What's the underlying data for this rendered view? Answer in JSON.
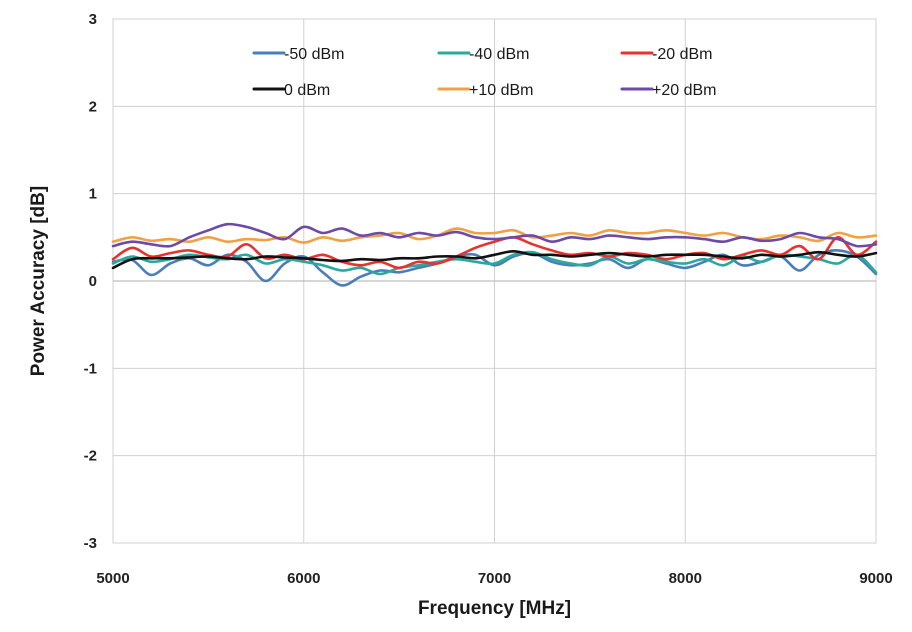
{
  "chart_data": {
    "type": "line",
    "title": "",
    "xlabel": "Frequency [MHz]",
    "ylabel": "Power Accuracy [dB]",
    "xlim": [
      5000,
      9000
    ],
    "ylim": [
      -3,
      3
    ],
    "xticks": [
      5000,
      6000,
      7000,
      8000,
      9000
    ],
    "yticks": [
      -3,
      -2,
      -1,
      0,
      1,
      2,
      3
    ],
    "grid": true,
    "legend_position": "top-center",
    "x": [
      5000,
      5100,
      5200,
      5300,
      5400,
      5500,
      5600,
      5700,
      5800,
      5900,
      6000,
      6100,
      6200,
      6300,
      6400,
      6500,
      6600,
      6700,
      6800,
      6900,
      7000,
      7100,
      7200,
      7300,
      7400,
      7500,
      7600,
      7700,
      7800,
      7900,
      8000,
      8100,
      8200,
      8300,
      8400,
      8500,
      8600,
      8700,
      8800,
      8900,
      9000
    ],
    "series": [
      {
        "name": "-50 dBm",
        "color": "#4a7ebb",
        "values": [
          0.22,
          0.24,
          0.07,
          0.2,
          0.26,
          0.18,
          0.3,
          0.22,
          0.0,
          0.2,
          0.28,
          0.1,
          -0.05,
          0.05,
          0.12,
          0.1,
          0.15,
          0.2,
          0.28,
          0.3,
          0.18,
          0.28,
          0.32,
          0.22,
          0.18,
          0.2,
          0.25,
          0.15,
          0.25,
          0.2,
          0.15,
          0.22,
          0.3,
          0.18,
          0.22,
          0.28,
          0.12,
          0.3,
          0.35,
          0.28,
          0.08
        ]
      },
      {
        "name": "-40 dBm",
        "color": "#2ba89e",
        "values": [
          0.2,
          0.28,
          0.22,
          0.25,
          0.3,
          0.27,
          0.25,
          0.3,
          0.2,
          0.25,
          0.22,
          0.18,
          0.12,
          0.15,
          0.08,
          0.15,
          0.18,
          0.22,
          0.25,
          0.22,
          0.2,
          0.3,
          0.33,
          0.25,
          0.2,
          0.18,
          0.28,
          0.2,
          0.25,
          0.22,
          0.2,
          0.25,
          0.18,
          0.28,
          0.22,
          0.3,
          0.28,
          0.25,
          0.2,
          0.3,
          0.1
        ]
      },
      {
        "name": "-20 dBm",
        "color": "#e8322d",
        "values": [
          0.25,
          0.38,
          0.28,
          0.32,
          0.35,
          0.3,
          0.28,
          0.42,
          0.26,
          0.3,
          0.25,
          0.3,
          0.22,
          0.18,
          0.22,
          0.15,
          0.22,
          0.2,
          0.28,
          0.38,
          0.45,
          0.5,
          0.42,
          0.35,
          0.3,
          0.32,
          0.28,
          0.32,
          0.3,
          0.25,
          0.3,
          0.32,
          0.25,
          0.3,
          0.35,
          0.3,
          0.4,
          0.25,
          0.5,
          0.3,
          0.45
        ]
      },
      {
        "name": "0 dBm",
        "color": "#111111",
        "values": [
          0.15,
          0.25,
          0.26,
          0.26,
          0.27,
          0.28,
          0.26,
          0.25,
          0.28,
          0.27,
          0.26,
          0.24,
          0.23,
          0.25,
          0.24,
          0.26,
          0.26,
          0.28,
          0.28,
          0.26,
          0.3,
          0.34,
          0.3,
          0.3,
          0.28,
          0.3,
          0.32,
          0.3,
          0.28,
          0.3,
          0.3,
          0.3,
          0.28,
          0.26,
          0.3,
          0.28,
          0.3,
          0.33,
          0.3,
          0.28,
          0.32
        ]
      },
      {
        "name": "+10 dBm",
        "color": "#f0a045",
        "values": [
          0.45,
          0.5,
          0.46,
          0.48,
          0.45,
          0.5,
          0.45,
          0.48,
          0.47,
          0.5,
          0.44,
          0.5,
          0.46,
          0.5,
          0.52,
          0.55,
          0.48,
          0.52,
          0.6,
          0.55,
          0.55,
          0.58,
          0.5,
          0.52,
          0.55,
          0.52,
          0.58,
          0.55,
          0.55,
          0.58,
          0.55,
          0.52,
          0.55,
          0.5,
          0.48,
          0.52,
          0.5,
          0.46,
          0.55,
          0.5,
          0.52
        ]
      },
      {
        "name": "+20 dBm",
        "color": "#6d4aa8",
        "values": [
          0.4,
          0.45,
          0.42,
          0.4,
          0.5,
          0.58,
          0.65,
          0.62,
          0.55,
          0.48,
          0.62,
          0.55,
          0.6,
          0.52,
          0.55,
          0.5,
          0.55,
          0.52,
          0.56,
          0.5,
          0.48,
          0.5,
          0.52,
          0.45,
          0.5,
          0.48,
          0.52,
          0.5,
          0.48,
          0.5,
          0.5,
          0.48,
          0.45,
          0.5,
          0.46,
          0.48,
          0.55,
          0.5,
          0.48,
          0.4,
          0.42
        ]
      }
    ]
  }
}
